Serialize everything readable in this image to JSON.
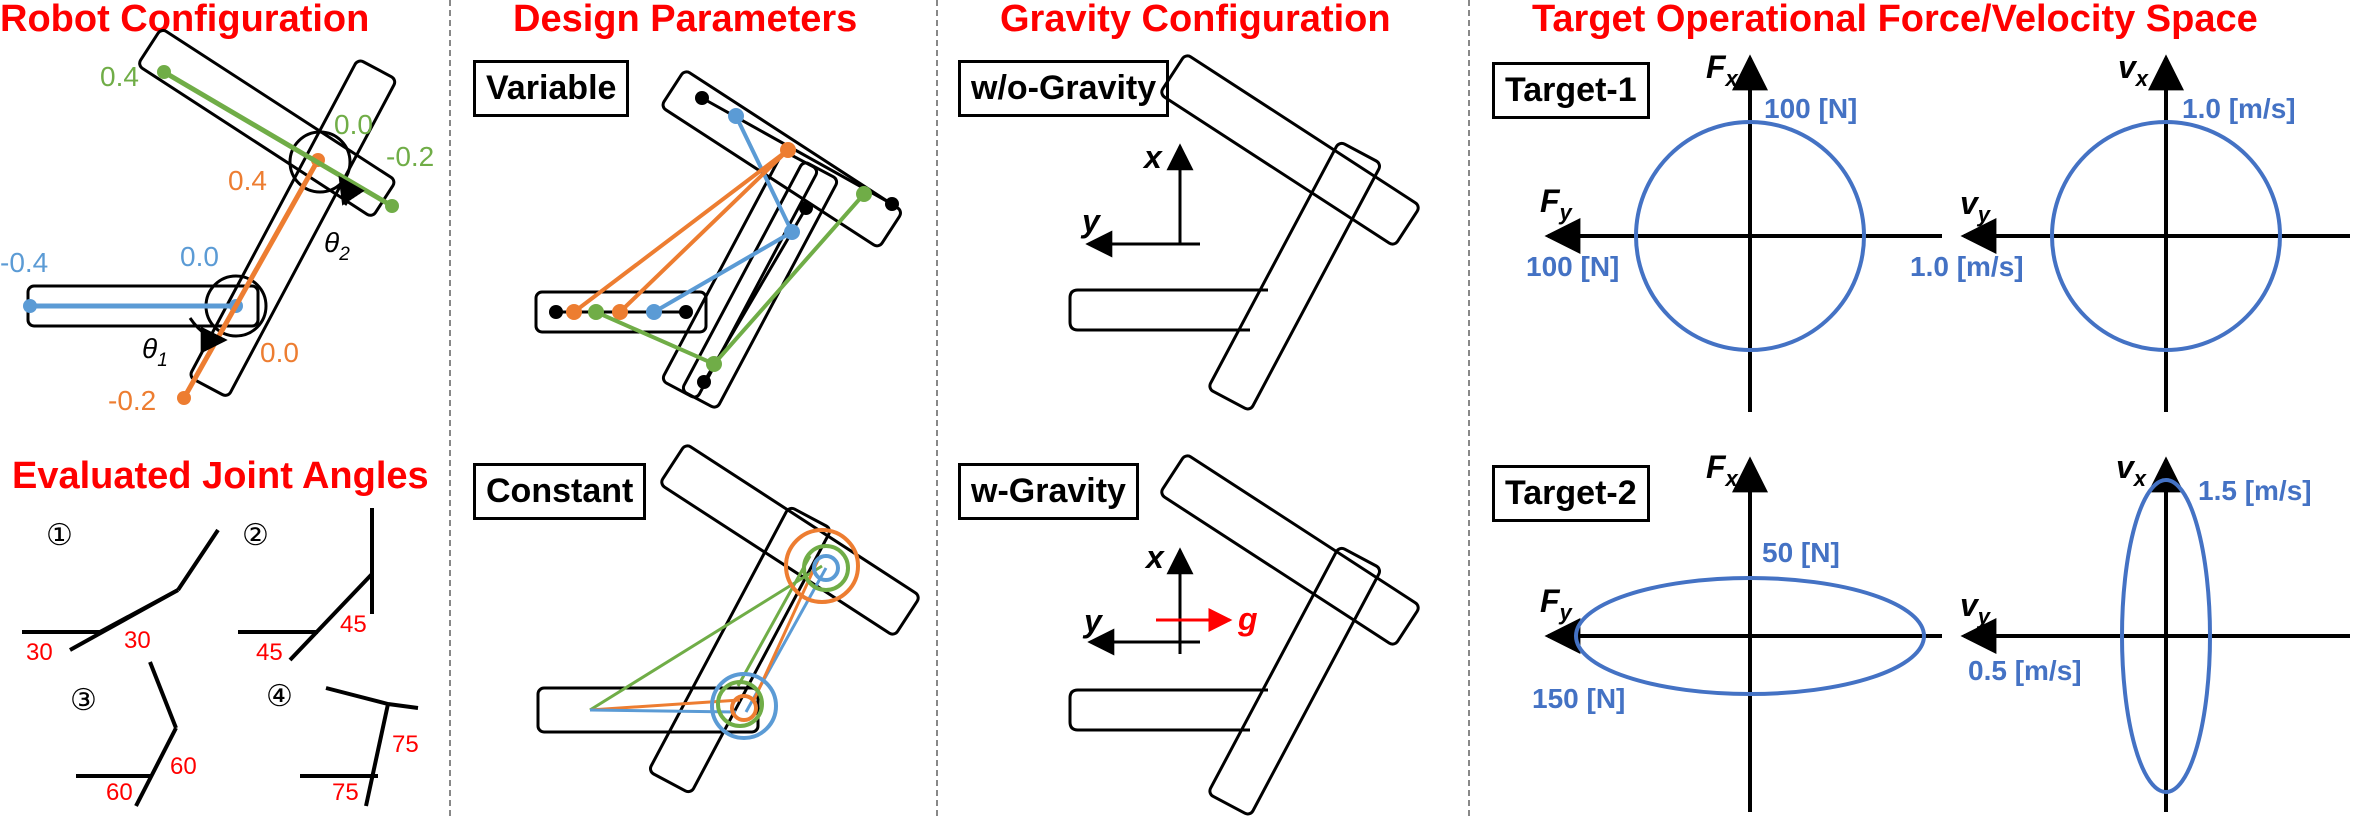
{
  "sections": {
    "robot_configuration": "Robot Configuration",
    "design_parameters": "Design Parameters",
    "gravity_configuration": "Gravity Configuration",
    "target_space": "Target Operational Force/Velocity Space",
    "evaluated_joint_angles": "Evaluated Joint Angles"
  },
  "robot_config": {
    "link1_values": {
      "blue_left": "-0.4",
      "blue_joint": "0.0"
    },
    "link2_values": {
      "orange_top": "0.4",
      "orange_bottom": "-0.2",
      "orange_joint": "0.0"
    },
    "green_values": {
      "green_left": "0.4",
      "green_joint": "0.0",
      "green_right": "-0.2"
    },
    "theta1": "θ",
    "theta1_sub": "1",
    "theta2": "θ",
    "theta2_sub": "2"
  },
  "joint_angles": [
    {
      "index": "①",
      "a": "30",
      "b": "30"
    },
    {
      "index": "②",
      "a": "45",
      "b": "45"
    },
    {
      "index": "③",
      "a": "60",
      "b": "60"
    },
    {
      "index": "④",
      "a": "75",
      "b": "75"
    }
  ],
  "design_params": {
    "variable_label": "Variable",
    "constant_label": "Constant"
  },
  "gravity": {
    "without_label": "w/o-Gravity",
    "with_label": "w-Gravity",
    "axis_x": "x",
    "axis_y": "y",
    "gravity_symbol": "g"
  },
  "targets": [
    {
      "label": "Target-1",
      "force": {
        "x_axis": "F",
        "x_sub": "x",
        "y_axis": "F",
        "y_sub": "y",
        "fx_value": "100 [N]",
        "fy_value": "100 [N]"
      },
      "velocity": {
        "x_axis": "v",
        "x_sub": "x",
        "y_axis": "v",
        "y_sub": "y",
        "vx_value": "1.0 [m/s]",
        "vy_value": "1.0 [m/s]"
      }
    },
    {
      "label": "Target-2",
      "force": {
        "x_axis": "F",
        "x_sub": "x",
        "y_axis": "F",
        "y_sub": "y",
        "fx_value": "50 [N]",
        "fy_value": "150 [N]"
      },
      "velocity": {
        "x_axis": "v",
        "x_sub": "x",
        "y_axis": "v",
        "y_sub": "y",
        "vx_value": "1.5 [m/s]",
        "vy_value": "0.5 [m/s]"
      }
    }
  ],
  "colors": {
    "title_red": "#ff0000",
    "blue": "#5b9bd5",
    "orange": "#ed7d31",
    "green": "#70ad47",
    "label_blue": "#4472c4"
  }
}
